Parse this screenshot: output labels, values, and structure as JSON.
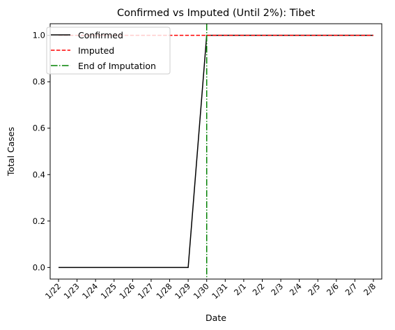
{
  "chart_data": {
    "type": "line",
    "title": "Confirmed vs Imputed (Until 2%): Tibet",
    "xlabel": "Date",
    "ylabel": "Total Cases",
    "categories": [
      "1/22",
      "1/23",
      "1/24",
      "1/25",
      "1/26",
      "1/27",
      "1/28",
      "1/29",
      "1/30",
      "1/31",
      "2/1",
      "2/2",
      "2/3",
      "2/4",
      "2/5",
      "2/6",
      "2/7",
      "2/8"
    ],
    "ylim": [
      -0.05,
      1.05
    ],
    "yticks": [
      0.0,
      0.2,
      0.4,
      0.6,
      0.8,
      1.0
    ],
    "ytick_labels": [
      "0.0",
      "0.2",
      "0.4",
      "0.6",
      "0.8",
      "1.0"
    ],
    "series": [
      {
        "name": "Confirmed",
        "color": "#000000",
        "style": "solid",
        "values": [
          0,
          0,
          0,
          0,
          0,
          0,
          0,
          0,
          1,
          1,
          1,
          1,
          1,
          1,
          1,
          1,
          1,
          1
        ]
      },
      {
        "name": "Imputed",
        "color": "#ff0000",
        "style": "dashed",
        "values": [
          1,
          1,
          1,
          1,
          1,
          1,
          1,
          1,
          1,
          1,
          1,
          1,
          1,
          1,
          1,
          1,
          1,
          1
        ]
      }
    ],
    "vline": {
      "name": "End of Imputation",
      "x": "1/30",
      "color": "#008000",
      "style": "dashdot"
    },
    "legend_position": "top-left",
    "grid": false
  }
}
